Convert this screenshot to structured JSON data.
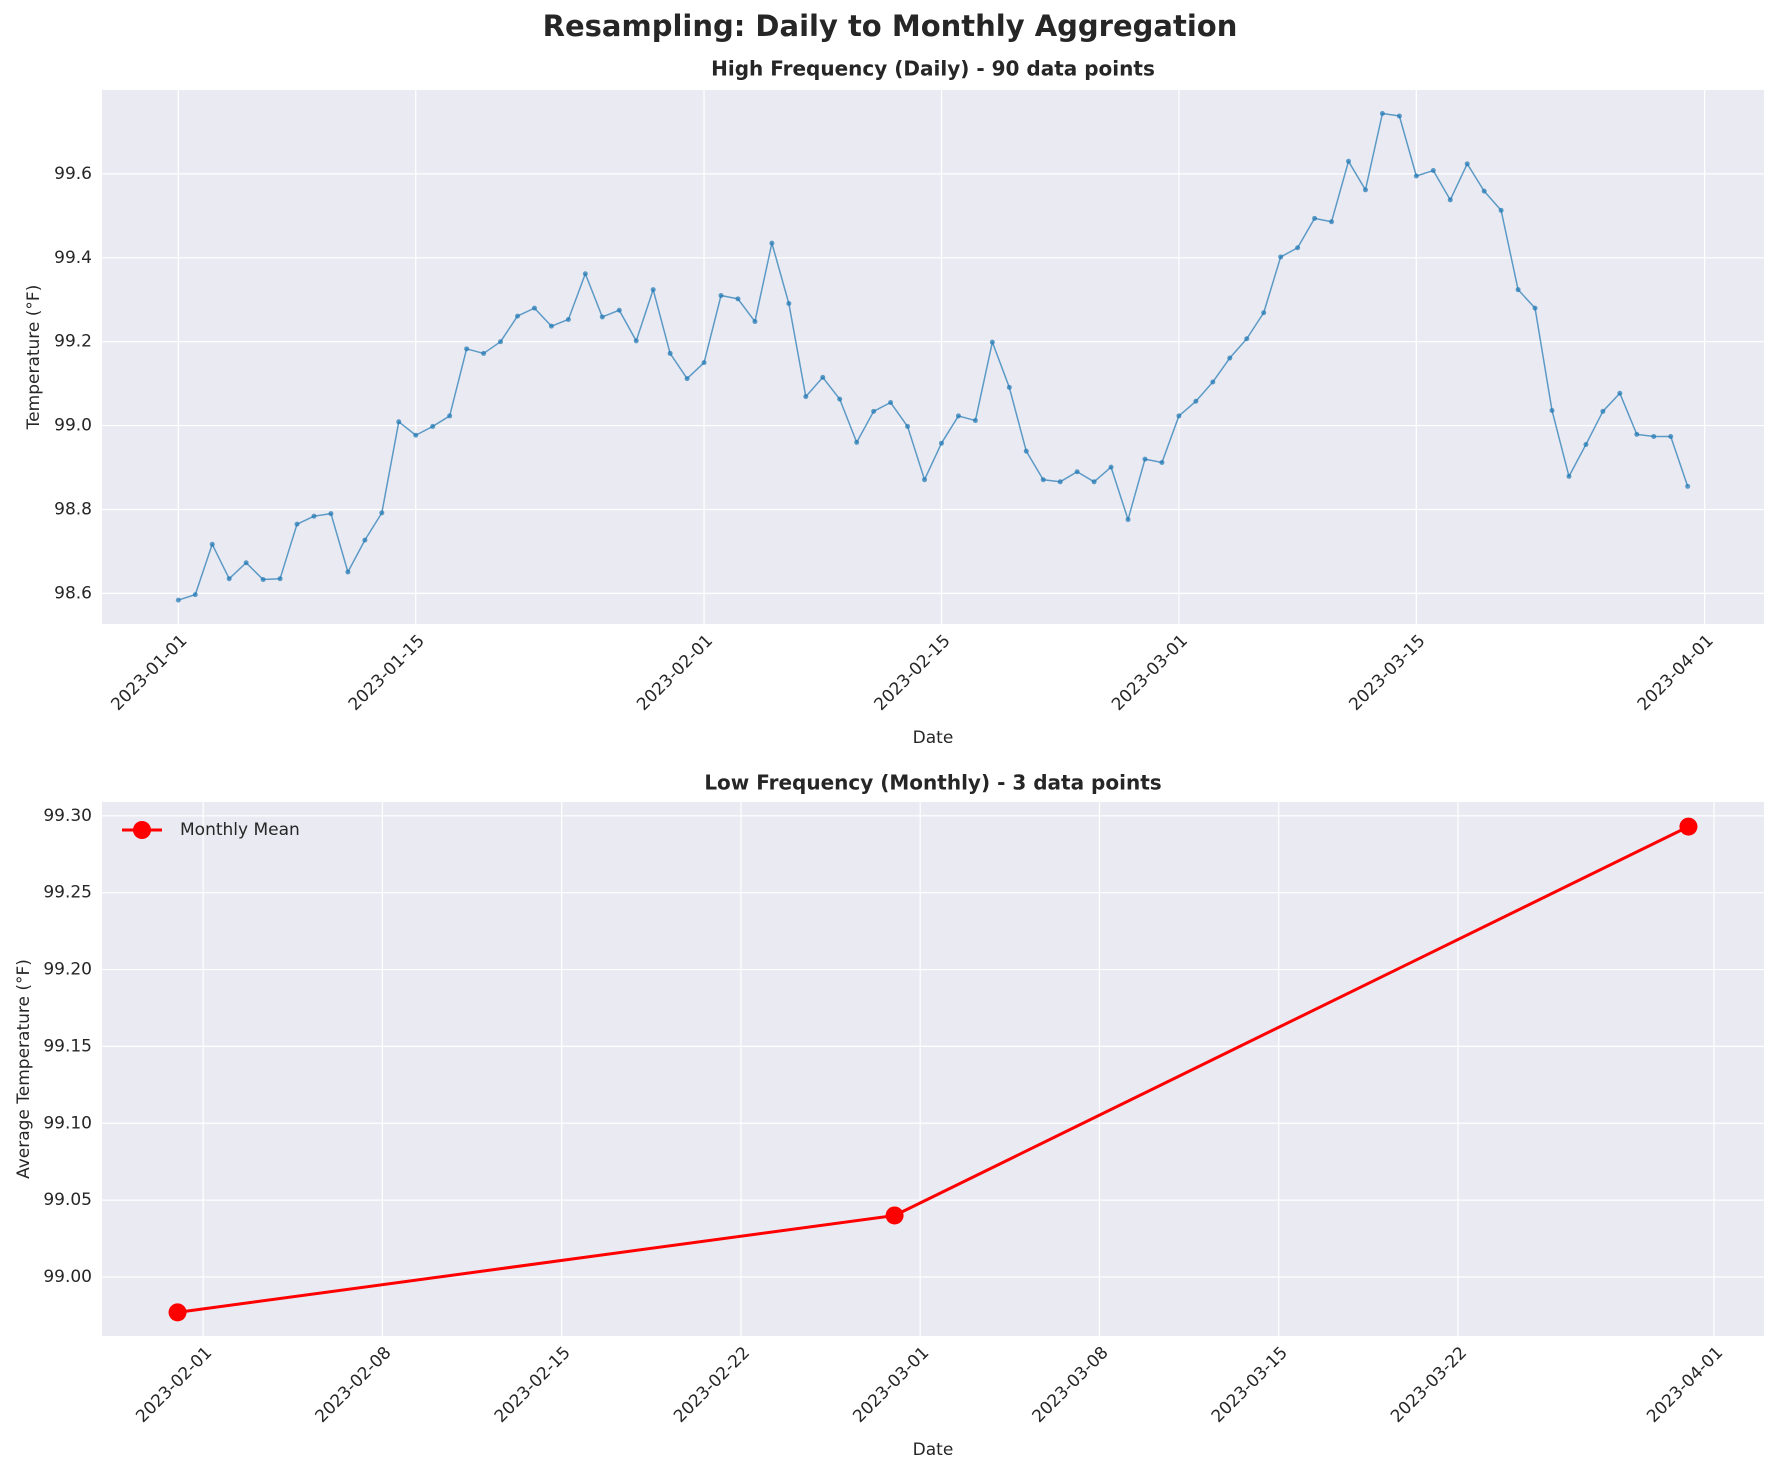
{
  "title": "Resampling: Daily to Monthly Aggregation",
  "chart_data": [
    {
      "type": "line",
      "title": "High Frequency (Daily) - 90 data points",
      "xlabel": "Date",
      "ylabel": "Temperature (°F)",
      "x": [
        "2023-01-01",
        "2023-01-02",
        "2023-01-03",
        "2023-01-04",
        "2023-01-05",
        "2023-01-06",
        "2023-01-07",
        "2023-01-08",
        "2023-01-09",
        "2023-01-10",
        "2023-01-11",
        "2023-01-12",
        "2023-01-13",
        "2023-01-14",
        "2023-01-15",
        "2023-01-16",
        "2023-01-17",
        "2023-01-18",
        "2023-01-19",
        "2023-01-20",
        "2023-01-21",
        "2023-01-22",
        "2023-01-23",
        "2023-01-24",
        "2023-01-25",
        "2023-01-26",
        "2023-01-27",
        "2023-01-28",
        "2023-01-29",
        "2023-01-30",
        "2023-01-31",
        "2023-02-01",
        "2023-02-02",
        "2023-02-03",
        "2023-02-04",
        "2023-02-05",
        "2023-02-06",
        "2023-02-07",
        "2023-02-08",
        "2023-02-09",
        "2023-02-10",
        "2023-02-11",
        "2023-02-12",
        "2023-02-13",
        "2023-02-14",
        "2023-02-15",
        "2023-02-16",
        "2023-02-17",
        "2023-02-18",
        "2023-02-19",
        "2023-02-20",
        "2023-02-21",
        "2023-02-22",
        "2023-02-23",
        "2023-02-24",
        "2023-02-25",
        "2023-02-26",
        "2023-02-27",
        "2023-02-28",
        "2023-03-01",
        "2023-03-02",
        "2023-03-03",
        "2023-03-04",
        "2023-03-05",
        "2023-03-06",
        "2023-03-07",
        "2023-03-08",
        "2023-03-09",
        "2023-03-10",
        "2023-03-11",
        "2023-03-12",
        "2023-03-13",
        "2023-03-14",
        "2023-03-15",
        "2023-03-16",
        "2023-03-17",
        "2023-03-18",
        "2023-03-19",
        "2023-03-20",
        "2023-03-21",
        "2023-03-22",
        "2023-03-23",
        "2023-03-24",
        "2023-03-25",
        "2023-03-26",
        "2023-03-27",
        "2023-03-28",
        "2023-03-29",
        "2023-03-30",
        "2023-03-31"
      ],
      "series": [
        {
          "name": "Daily",
          "color": "#1f77b4",
          "opacity": 0.7,
          "marker_size": 2.5,
          "line_width": 1.5,
          "values": [
            98.584,
            98.597,
            98.717,
            98.635,
            98.673,
            98.633,
            98.635,
            98.765,
            98.784,
            98.79,
            98.651,
            98.727,
            98.792,
            99.009,
            98.977,
            98.998,
            99.023,
            99.183,
            99.172,
            99.2,
            99.261,
            99.28,
            99.237,
            99.253,
            99.362,
            99.259,
            99.275,
            99.202,
            99.324,
            99.172,
            99.112,
            99.15,
            99.31,
            99.302,
            99.248,
            99.435,
            99.291,
            99.069,
            99.115,
            99.063,
            98.96,
            99.034,
            99.055,
            98.998,
            98.871,
            98.958,
            99.023,
            99.012,
            99.199,
            99.091,
            98.939,
            98.871,
            98.866,
            98.89,
            98.866,
            98.901,
            98.776,
            98.92,
            98.912,
            99.023,
            99.058,
            99.104,
            99.161,
            99.207,
            99.269,
            99.402,
            99.424,
            99.494,
            99.486,
            99.63,
            99.562,
            99.744,
            99.738,
            99.595,
            99.608,
            99.538,
            99.624,
            99.559,
            99.513,
            99.324,
            99.28,
            99.036,
            98.879,
            98.955,
            99.034,
            99.077,
            98.979,
            98.974,
            98.974,
            98.855
          ]
        }
      ],
      "xlim": [
        "2022-12-27T12:00:00Z",
        "2023-04-04T12:00:00Z"
      ],
      "xticks": [
        "2023-01-01",
        "2023-01-15",
        "2023-02-01",
        "2023-02-15",
        "2023-03-01",
        "2023-03-15",
        "2023-04-01"
      ],
      "ylim": [
        98.527,
        99.8
      ],
      "yticks": [
        {
          "value": 98.6,
          "label": "98.6"
        },
        {
          "value": 98.8,
          "label": "98.8"
        },
        {
          "value": 99.0,
          "label": "99.0"
        },
        {
          "value": 99.2,
          "label": "99.2"
        },
        {
          "value": 99.4,
          "label": "99.4"
        },
        {
          "value": 99.6,
          "label": "99.6"
        }
      ],
      "grid": true,
      "legend": false
    },
    {
      "type": "line",
      "title": "Low Frequency (Monthly) - 3 data points",
      "xlabel": "Date",
      "ylabel": "Average Temperature (°F)",
      "x": [
        "2023-01-31",
        "2023-02-28",
        "2023-03-31"
      ],
      "series": [
        {
          "name": "Monthly Mean",
          "color": "#ff0000",
          "opacity": 1,
          "marker_size": 9,
          "line_width": 3,
          "values": [
            98.977,
            99.04,
            99.293
          ]
        }
      ],
      "xlim": [
        "2023-01-28T01:12:00Z",
        "2023-04-02T22:48:00Z"
      ],
      "xticks": [
        "2023-02-01",
        "2023-02-08",
        "2023-02-15",
        "2023-02-22",
        "2023-03-01",
        "2023-03-08",
        "2023-03-15",
        "2023-03-22",
        "2023-04-01"
      ],
      "ylim": [
        98.9616,
        99.309
      ],
      "yticks": [
        {
          "value": 99.0,
          "label": "99.00"
        },
        {
          "value": 99.05,
          "label": "99.05"
        },
        {
          "value": 99.1,
          "label": "99.10"
        },
        {
          "value": 99.15,
          "label": "99.15"
        },
        {
          "value": 99.2,
          "label": "99.20"
        },
        {
          "value": 99.25,
          "label": "99.25"
        },
        {
          "value": 99.3,
          "label": "99.30"
        }
      ],
      "grid": true,
      "legend": "upper left"
    }
  ]
}
